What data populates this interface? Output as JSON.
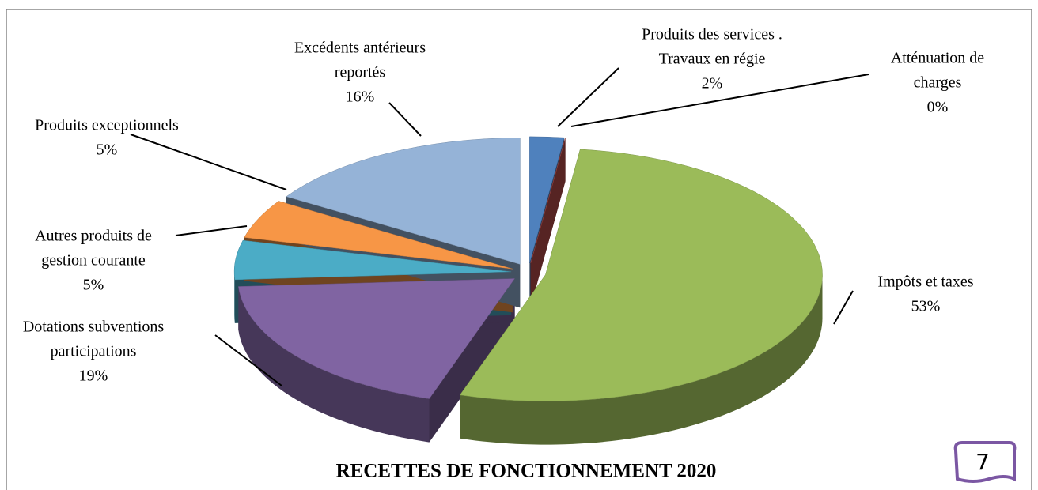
{
  "chart_data": {
    "type": "pie",
    "title": "RECETTES DE FONCTIONNEMENT  2020",
    "categories": [
      [
        "Produits des services .",
        "Travaux en régie"
      ],
      [
        "Atténuation de",
        "charges"
      ],
      [
        "Impôts et taxes"
      ],
      [
        "Dotations subventions",
        "participations"
      ],
      [
        "Autres produits de",
        "gestion courante"
      ],
      [
        "Produits exceptionnels"
      ],
      [
        "Excédents antérieurs",
        "reportés"
      ]
    ],
    "values": [
      2,
      0,
      53,
      19,
      5,
      5,
      16
    ],
    "value_labels": [
      "2%",
      "0%",
      "53%",
      "19%",
      "5%",
      "5%",
      "16%"
    ],
    "colors": [
      "#4f81bd",
      "#c0504d",
      "#9bbb59",
      "#8064a2",
      "#4bacc6",
      "#f79646",
      "#95b3d7"
    ]
  },
  "page_number": "7"
}
